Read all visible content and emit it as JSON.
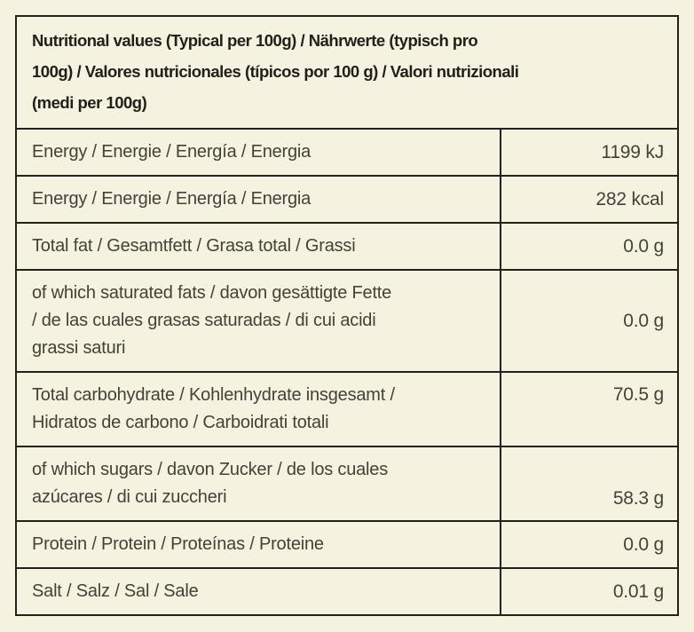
{
  "colors": {
    "background": "#f5f2df",
    "border": "#23211b",
    "header_text": "#21201a",
    "body_text": "#444238"
  },
  "table": {
    "header": "Nutritional values (Typical per 100g) / Nährwerte (typisch pro\n100g) / Valores nutricionales (típicos por 100 g) / Valori nutrizionali\n(medi per 100g)",
    "rows": [
      {
        "label": "Energy / Energie / Energía / Energia",
        "value": "1199 kJ"
      },
      {
        "label": "Energy / Energie / Energía / Energia",
        "value": "282 kcal"
      },
      {
        "label": "Total fat / Gesamtfett / Grasa total / Grassi",
        "value": "0.0 g"
      },
      {
        "label": "of which saturated fats / davon gesättigte Fette\n/ de las cuales grasas saturadas / di cui acidi\ngrassi saturi",
        "value": "0.0 g"
      },
      {
        "label": "Total carbohydrate / Kohlenhydrate insgesamt /\nHidratos de carbono / Carboidrati totali",
        "value": "70.5 g"
      },
      {
        "label": "of which sugars / davon Zucker / de los cuales\nazúcares / di cui zuccheri",
        "value": "58.3 g"
      },
      {
        "label": "Protein / Protein / Proteínas / Proteine",
        "value": "0.0 g"
      },
      {
        "label": "Salt / Salz / Sal / Sale",
        "value": "0.01 g"
      }
    ]
  }
}
